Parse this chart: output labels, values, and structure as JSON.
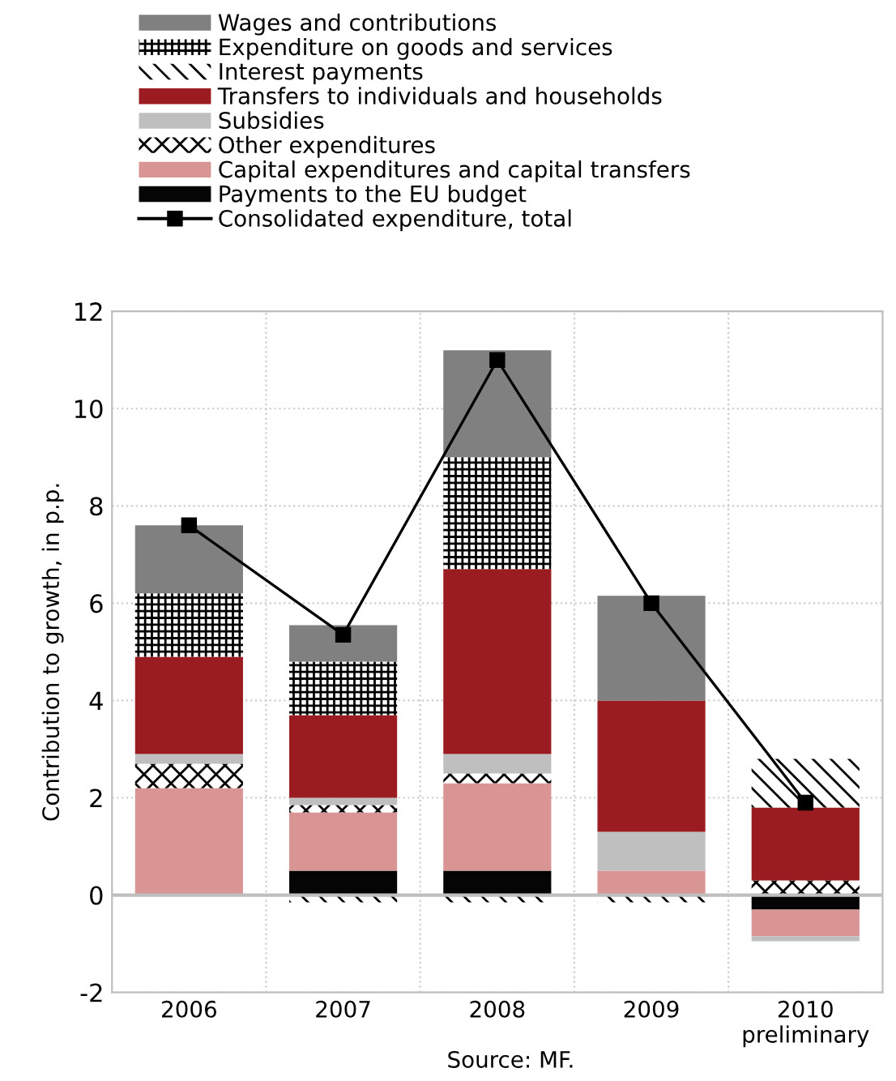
{
  "chart_data": {
    "type": "bar",
    "stacked": true,
    "ylabel": "Contribution to growth, in p.p.",
    "categories": [
      "2006",
      "2007",
      "2008",
      "2009",
      "2010\npreliminary"
    ],
    "series": [
      {
        "name": "Payments to the EU budget",
        "color": "#050505",
        "values": [
          0,
          0.5,
          0.5,
          0,
          -0.3
        ]
      },
      {
        "name": "Capital expenditures and capital transfers",
        "color": "#d99594",
        "values": [
          2.2,
          1.2,
          1.8,
          0.5,
          -0.55
        ]
      },
      {
        "name": "Other expenditures",
        "color": "#000000",
        "values": [
          0.5,
          0.15,
          0.2,
          0,
          0.3
        ]
      },
      {
        "name": "Subsidies",
        "color": "#bfbfbf",
        "values": [
          0.2,
          0.15,
          0.4,
          0.8,
          -0.1
        ]
      },
      {
        "name": "Transfers to individuals and households",
        "color": "#9b1c20",
        "values": [
          2.0,
          1.7,
          3.8,
          2.7,
          1.5
        ]
      },
      {
        "name": "Interest payments",
        "color": "#000001",
        "values": [
          0,
          -0.15,
          -0.15,
          -0.15,
          1.0
        ]
      },
      {
        "name": "Expenditure on goods and services",
        "color": "#000002",
        "values": [
          1.3,
          1.1,
          2.3,
          0,
          0
        ]
      },
      {
        "name": "Wages and contributions",
        "color": "#808080",
        "values": [
          1.4,
          0.75,
          2.2,
          2.15,
          0
        ]
      },
      {
        "name": "Consolidated expenditure, total",
        "type": "line",
        "color": "#000000",
        "marker": "square",
        "line_style": "solid",
        "values": [
          7.6,
          5.35,
          11.0,
          6.0,
          1.9
        ]
      }
    ],
    "ylim": [
      -2,
      12
    ],
    "yticks": [
      -2,
      0,
      2,
      4,
      6,
      8,
      10,
      12
    ],
    "grid": true,
    "legend": "top",
    "annotations": [
      "Source: MF."
    ]
  }
}
